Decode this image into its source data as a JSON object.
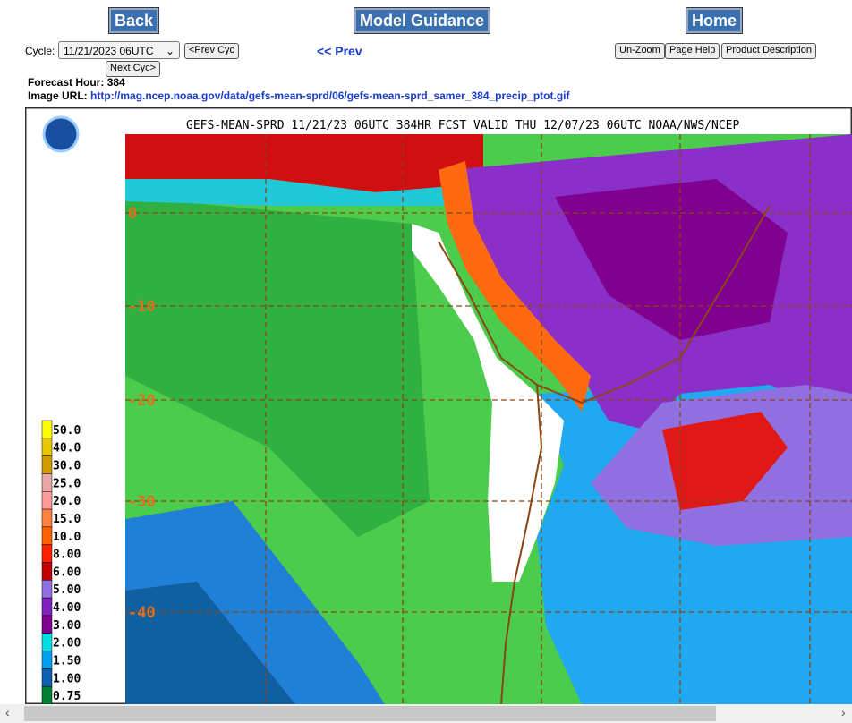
{
  "nav": {
    "back": "Back",
    "model_guidance": "Model Guidance",
    "home": "Home"
  },
  "controls": {
    "cycle_label": "Cycle:",
    "cycle_value": "11/21/2023 06UTC",
    "prev_cyc": "<Prev Cyc",
    "next_cyc": "Next Cyc>",
    "prev": "<< Prev",
    "unzoom": "Un-Zoom",
    "page_help": "Page Help",
    "product_description": "Product Description"
  },
  "info": {
    "forecast_hour_label": "Forecast Hour:",
    "forecast_hour": "384",
    "image_url_label": "Image URL:",
    "image_url": "http://mag.ncep.noaa.gov/data/gefs-mean-sprd/06/gefs-mean-sprd_samer_384_precip_ptot.gif"
  },
  "image": {
    "title": "GEFS-MEAN-SPRD 11/21/23 06UTC 384HR FCST VALID THU 12/07/23 06UTC NOAA/NWS/NCEP",
    "lat_labels": [
      "0",
      "-10",
      "-20",
      "-30",
      "-40"
    ],
    "legend": [
      {
        "label": "50.0",
        "color": "#ffff00"
      },
      {
        "label": "40.0",
        "color": "#e8c800"
      },
      {
        "label": "30.0",
        "color": "#d09c00"
      },
      {
        "label": "25.0",
        "color": "#e8a8a8"
      },
      {
        "label": "20.0",
        "color": "#ff9c9c"
      },
      {
        "label": "15.0",
        "color": "#ff8040"
      },
      {
        "label": "10.0",
        "color": "#ff6000"
      },
      {
        "label": "8.00",
        "color": "#ff2000"
      },
      {
        "label": "6.00",
        "color": "#c00000"
      },
      {
        "label": "5.00",
        "color": "#9070e0"
      },
      {
        "label": "4.00",
        "color": "#8020c0"
      },
      {
        "label": "3.00",
        "color": "#800090"
      },
      {
        "label": "2.00",
        "color": "#00e0e0"
      },
      {
        "label": "1.50",
        "color": "#00a0f0"
      },
      {
        "label": "1.00",
        "color": "#1060b0"
      },
      {
        "label": "0.75",
        "color": "#008030"
      }
    ]
  }
}
